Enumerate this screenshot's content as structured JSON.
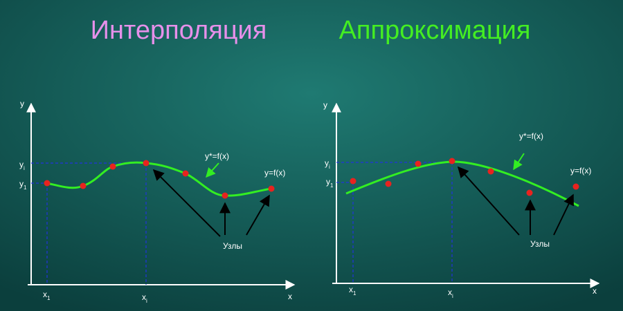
{
  "titles": [
    "Интерполяция",
    "Аппроксимация"
  ],
  "panels": [
    {
      "y_axis": "y",
      "x_axis": "x",
      "y_ticks": [
        {
          "text": "y",
          "sub": "i"
        },
        {
          "text": "y",
          "sub": "1"
        }
      ],
      "x_ticks": [
        {
          "text": "x",
          "sub": "1"
        },
        {
          "text": "x",
          "sub": "i"
        }
      ],
      "curve_label": "y*=f(x)",
      "function_label": "y=f(x)",
      "nodes_label": "Узлы"
    },
    {
      "y_axis": "y",
      "x_axis": "x",
      "y_ticks": [
        {
          "text": "y",
          "sub": "i"
        },
        {
          "text": "y",
          "sub": "1"
        }
      ],
      "x_ticks": [
        {
          "text": "x",
          "sub": "1"
        },
        {
          "text": "x",
          "sub": "i"
        }
      ],
      "curve_label": "y*=f(x)",
      "function_label": "y=f(x)",
      "nodes_label": "Узлы"
    }
  ]
}
